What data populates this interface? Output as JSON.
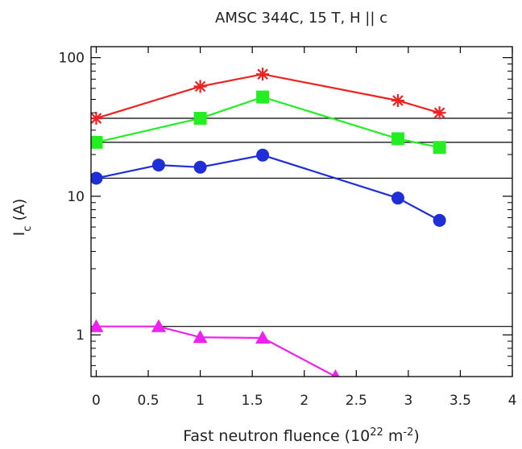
{
  "chart_data": {
    "type": "line",
    "title": "AMSC 344C, 15 T, H || c",
    "xlabel": {
      "main": "Fast neutron fluence (10",
      "sup1": "22",
      "mid": " m",
      "sup2": "-2",
      "end": ")"
    },
    "ylabel": {
      "main": "I",
      "sub": "c",
      "end": " (A)"
    },
    "x_scale": "linear",
    "y_scale": "log",
    "xlim": [
      -0.05,
      4
    ],
    "ylim": [
      0.5,
      120
    ],
    "x_ticks": [
      0,
      0.5,
      1,
      1.5,
      2,
      2.5,
      3,
      3.5,
      4
    ],
    "x_tick_labels": [
      "0",
      "0.5",
      "1",
      "1.5",
      "2",
      "2.5",
      "3",
      "3.5",
      "4"
    ],
    "y_ticks": [
      1,
      10,
      100
    ],
    "y_tick_labels": [
      "1",
      "10",
      "100"
    ],
    "reference_lines": [
      36.5,
      24.5,
      13.5,
      1.15
    ],
    "series": [
      {
        "marker": "asterisk",
        "color": "#ee2222",
        "x": [
          0,
          1,
          1.6,
          2.9,
          3.3
        ],
        "y": [
          36.5,
          62,
          76,
          49,
          40
        ]
      },
      {
        "marker": "square",
        "color": "#22ee22",
        "x": [
          0,
          1,
          1.6,
          2.9,
          3.3
        ],
        "y": [
          24.5,
          36.5,
          52,
          26,
          22.5
        ]
      },
      {
        "marker": "circle",
        "color": "#1f2ed6",
        "x": [
          0,
          0.6,
          1,
          1.6,
          2.9,
          3.3
        ],
        "y": [
          13.5,
          16.8,
          16.2,
          19.8,
          9.7,
          6.7
        ]
      },
      {
        "marker": "triangle",
        "color": "#ee22ee",
        "x": [
          0,
          0.6,
          1,
          1.6,
          2.3
        ],
        "y": [
          1.15,
          1.15,
          0.96,
          0.95,
          0.5
        ]
      }
    ]
  }
}
